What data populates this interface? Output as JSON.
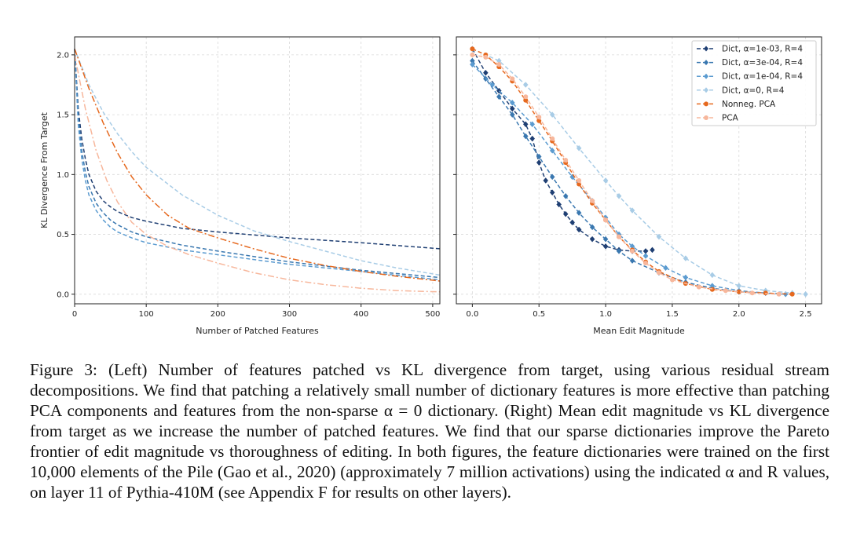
{
  "chart_data": [
    {
      "type": "line",
      "title": "",
      "xlabel": "Number of Patched Features",
      "ylabel": "KL Divergence From Target",
      "xlim": [
        0,
        510
      ],
      "ylim": [
        -0.08,
        2.15
      ],
      "xticks": [
        0,
        100,
        200,
        300,
        400,
        500
      ],
      "xtick_labels": [
        "0",
        "100",
        "200",
        "300",
        "400",
        "500"
      ],
      "yticks": [
        0.0,
        0.5,
        1.0,
        1.5,
        2.0
      ],
      "ytick_labels": [
        "0.0",
        "0.5",
        "1.0",
        "1.5",
        "2.0"
      ],
      "grid": true,
      "series": [
        {
          "name": "Dict, α=1e-03, R=4",
          "color": "#1f3f73",
          "dash": "5,3",
          "x": [
            0,
            5,
            10,
            15,
            20,
            30,
            40,
            50,
            60,
            80,
            100,
            150,
            200,
            300,
            400,
            510
          ],
          "y": [
            2.05,
            1.55,
            1.3,
            1.13,
            1.0,
            0.86,
            0.78,
            0.73,
            0.69,
            0.64,
            0.61,
            0.55,
            0.52,
            0.47,
            0.43,
            0.38
          ]
        },
        {
          "name": "Dict, α=3e-04, R=4",
          "color": "#3a78b0",
          "dash": "5,3",
          "x": [
            0,
            5,
            10,
            15,
            20,
            30,
            40,
            50,
            60,
            80,
            100,
            150,
            200,
            300,
            400,
            510
          ],
          "y": [
            2.05,
            1.48,
            1.2,
            1.02,
            0.9,
            0.76,
            0.68,
            0.62,
            0.58,
            0.52,
            0.48,
            0.41,
            0.36,
            0.27,
            0.2,
            0.14
          ]
        },
        {
          "name": "Dict, α=1e-04, R=4",
          "color": "#5b9bd0",
          "dash": "5,3",
          "x": [
            0,
            5,
            10,
            15,
            20,
            30,
            40,
            50,
            60,
            80,
            100,
            150,
            200,
            300,
            400,
            510
          ],
          "y": [
            2.05,
            1.42,
            1.13,
            0.95,
            0.83,
            0.7,
            0.62,
            0.56,
            0.52,
            0.47,
            0.43,
            0.37,
            0.33,
            0.25,
            0.19,
            0.12
          ]
        },
        {
          "name": "Dict, α=0, R=4",
          "color": "#a8cce6",
          "dash": "5,3",
          "x": [
            0,
            20,
            40,
            60,
            80,
            100,
            150,
            200,
            250,
            300,
            350,
            400,
            450,
            510
          ],
          "y": [
            2.05,
            1.75,
            1.52,
            1.34,
            1.19,
            1.06,
            0.83,
            0.66,
            0.53,
            0.44,
            0.36,
            0.28,
            0.22,
            0.16
          ]
        },
        {
          "name": "Nonneg. PCA",
          "color": "#e6691f",
          "dash": "8,3,2,3",
          "x": [
            0,
            20,
            40,
            60,
            80,
            100,
            130,
            160,
            200,
            250,
            300,
            350,
            400,
            450,
            510
          ],
          "y": [
            2.05,
            1.72,
            1.43,
            1.18,
            0.98,
            0.83,
            0.66,
            0.55,
            0.47,
            0.38,
            0.3,
            0.24,
            0.19,
            0.15,
            0.11
          ]
        },
        {
          "name": "PCA",
          "color": "#f7b79c",
          "dash": "8,3,2,3",
          "x": [
            0,
            15,
            30,
            45,
            60,
            80,
            100,
            130,
            160,
            200,
            250,
            300,
            350,
            400,
            450,
            510
          ],
          "y": [
            2.0,
            1.55,
            1.2,
            0.95,
            0.77,
            0.6,
            0.5,
            0.4,
            0.33,
            0.26,
            0.18,
            0.12,
            0.08,
            0.05,
            0.03,
            0.02
          ]
        }
      ]
    },
    {
      "type": "line",
      "title": "",
      "xlabel": "Mean Edit Magnitude",
      "ylabel": "",
      "xlim": [
        -0.12,
        2.62
      ],
      "ylim": [
        -0.08,
        2.15
      ],
      "xticks": [
        0.0,
        0.5,
        1.0,
        1.5,
        2.0,
        2.5
      ],
      "xtick_labels": [
        "0.0",
        "0.5",
        "1.0",
        "1.5",
        "2.0",
        "2.5"
      ],
      "yticks": [
        0.0,
        0.5,
        1.0,
        1.5,
        2.0
      ],
      "grid": true,
      "legend_position": "top-right",
      "series": [
        {
          "name": "Dict, α=1e-03, R=4",
          "color": "#1f3f73",
          "dash": "5,3",
          "marker": "diamond",
          "x": [
            0.0,
            0.1,
            0.2,
            0.3,
            0.4,
            0.45,
            0.5,
            0.55,
            0.6,
            0.65,
            0.7,
            0.75,
            0.8,
            0.9,
            1.0,
            1.1,
            1.2,
            1.3,
            1.35
          ],
          "y": [
            2.05,
            1.85,
            1.7,
            1.55,
            1.42,
            1.3,
            1.1,
            0.95,
            0.85,
            0.75,
            0.67,
            0.6,
            0.54,
            0.46,
            0.4,
            0.37,
            0.36,
            0.36,
            0.37
          ]
        },
        {
          "name": "Dict, α=3e-04, R=4",
          "color": "#3a78b0",
          "dash": "5,3",
          "marker": "diamond",
          "x": [
            0.0,
            0.1,
            0.2,
            0.3,
            0.4,
            0.5,
            0.6,
            0.7,
            0.8,
            0.9,
            1.0,
            1.1,
            1.2,
            1.4,
            1.6,
            1.8,
            2.0,
            2.2
          ],
          "y": [
            1.95,
            1.8,
            1.65,
            1.5,
            1.32,
            1.15,
            0.98,
            0.82,
            0.68,
            0.56,
            0.46,
            0.36,
            0.28,
            0.18,
            0.1,
            0.05,
            0.02,
            0.01
          ]
        },
        {
          "name": "Dict, α=1e-04, R=4",
          "color": "#5b9bd0",
          "dash": "5,3",
          "marker": "diamond",
          "x": [
            0.0,
            0.15,
            0.3,
            0.45,
            0.6,
            0.75,
            0.9,
            1.0,
            1.1,
            1.2,
            1.3,
            1.45,
            1.6,
            1.8,
            2.0,
            2.2,
            2.35
          ],
          "y": [
            1.92,
            1.75,
            1.6,
            1.42,
            1.2,
            0.98,
            0.78,
            0.64,
            0.5,
            0.4,
            0.32,
            0.22,
            0.14,
            0.07,
            0.03,
            0.01,
            0.0
          ]
        },
        {
          "name": "Dict, α=0, R=4",
          "color": "#a8cce6",
          "dash": "5,3",
          "marker": "diamond",
          "x": [
            0.0,
            0.2,
            0.4,
            0.6,
            0.8,
            1.0,
            1.1,
            1.2,
            1.4,
            1.6,
            1.8,
            2.0,
            2.2,
            2.4,
            2.5
          ],
          "y": [
            2.05,
            1.95,
            1.75,
            1.5,
            1.22,
            0.95,
            0.82,
            0.7,
            0.48,
            0.3,
            0.16,
            0.07,
            0.03,
            0.01,
            0.0
          ]
        },
        {
          "name": "Nonneg. PCA",
          "color": "#e6691f",
          "dash": "5,3",
          "marker": "circle",
          "x": [
            0.0,
            0.1,
            0.2,
            0.3,
            0.4,
            0.5,
            0.6,
            0.7,
            0.8,
            0.9,
            1.0,
            1.1,
            1.2,
            1.3,
            1.4,
            1.6,
            1.8,
            2.0,
            2.2,
            2.4
          ],
          "y": [
            2.05,
            2.0,
            1.9,
            1.78,
            1.62,
            1.45,
            1.28,
            1.1,
            0.92,
            0.76,
            0.62,
            0.48,
            0.37,
            0.27,
            0.19,
            0.09,
            0.04,
            0.02,
            0.01,
            0.0
          ]
        },
        {
          "name": "PCA",
          "color": "#f7b79c",
          "dash": "5,3",
          "marker": "circle",
          "x": [
            0.0,
            0.1,
            0.2,
            0.3,
            0.4,
            0.5,
            0.6,
            0.7,
            0.8,
            0.9,
            1.0,
            1.1,
            1.2,
            1.3,
            1.4,
            1.5,
            1.7,
            1.9,
            2.1,
            2.3
          ],
          "y": [
            2.0,
            1.98,
            1.92,
            1.8,
            1.65,
            1.48,
            1.3,
            1.12,
            0.95,
            0.78,
            0.62,
            0.48,
            0.36,
            0.26,
            0.18,
            0.12,
            0.06,
            0.03,
            0.01,
            0.0
          ]
        }
      ]
    }
  ],
  "caption": {
    "text": "Figure 3: (Left) Number of features patched vs KL divergence from target, using various residual stream decompositions. We find that patching a relatively small number of dictionary features is more effective than patching PCA components and features from the non-sparse α = 0 dictionary. (Right) Mean edit magnitude vs KL divergence from target as we increase the number of patched features. We find that our sparse dictionaries improve the Pareto frontier of edit magnitude vs thoroughness of editing. In both figures, the feature dictionaries were trained on the first 10,000 elements of the Pile (Gao et al., 2020) (approximately 7 million activations) using the indicated α and R values, on layer 11 of Pythia-410M (see Appendix F for results on other layers)."
  }
}
